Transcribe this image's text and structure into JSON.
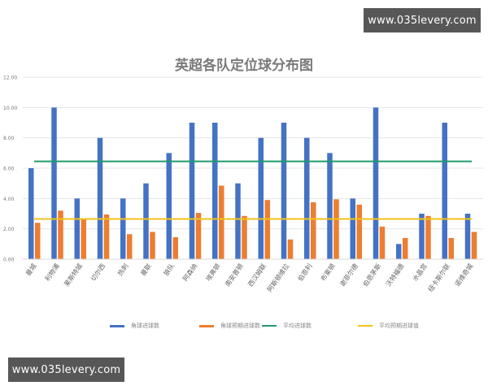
{
  "watermarks": {
    "top_right": "www.035levery.com",
    "bottom_left": "www.035levery.com"
  },
  "chart_data": {
    "type": "bar",
    "title": "英超各队定位球分布图",
    "xlabel": "",
    "ylabel": "",
    "ylim": [
      0,
      12
    ],
    "yticks": [
      "0.00",
      "2.00",
      "4.00",
      "6.00",
      "8.00",
      "10.00",
      "12.00"
    ],
    "grid": true,
    "legend_position": "bottom",
    "categories": [
      "曼城",
      "利物浦",
      "莱斯特城",
      "切尔西",
      "热刺",
      "曼联",
      "狼队",
      "阿森纳",
      "埃弗顿",
      "南安普顿",
      "西汉姆联",
      "阿斯顿维拉",
      "伯恩利",
      "布莱顿",
      "谢菲尔德",
      "伯恩茅斯",
      "沃特福德",
      "水晶宫",
      "纽卡斯尔联",
      "诺维奇城"
    ],
    "series": [
      {
        "name": "角球进球数",
        "kind": "bar",
        "color": "#4472c4",
        "values": [
          6,
          10,
          4,
          8,
          4,
          5,
          7,
          9,
          9,
          5,
          8,
          9,
          8,
          7,
          4,
          10,
          1,
          3,
          9,
          3
        ]
      },
      {
        "name": "角球预期进球数",
        "kind": "bar",
        "color": "#ed7d31",
        "values": [
          2.4,
          3.2,
          2.7,
          2.95,
          1.65,
          1.8,
          1.45,
          3.05,
          4.85,
          2.85,
          3.9,
          1.3,
          3.75,
          3.95,
          3.6,
          2.15,
          1.4,
          2.85,
          1.4,
          1.8
        ]
      },
      {
        "name": "平均进球数",
        "kind": "line",
        "color": "#1f9a6b",
        "value": 6.45
      },
      {
        "name": "平均预期进球值",
        "kind": "line",
        "color": "#f2c21b",
        "value": 2.65
      }
    ]
  }
}
